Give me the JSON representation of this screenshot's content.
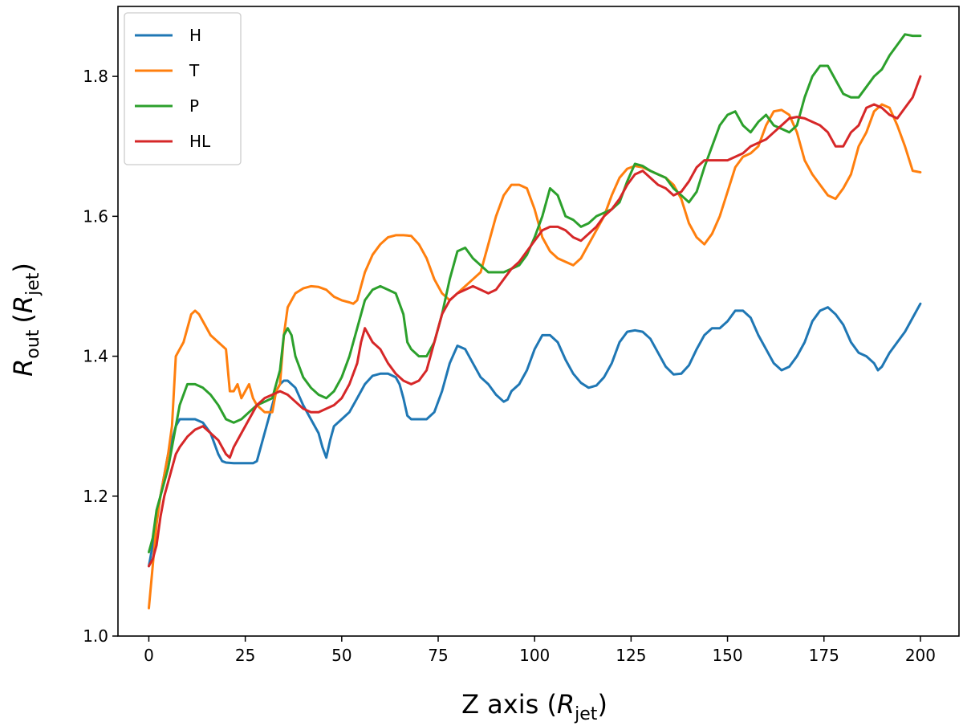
{
  "chart_data": {
    "type": "line",
    "xlabel": "Z axis (R_jet)",
    "xlabel_main": "Z axis (",
    "xlabel_var": "R",
    "xlabel_sub": "jet",
    "xlabel_close": ")",
    "ylabel_var": "R",
    "ylabel_sub1": "out",
    "ylabel_paren_open": "(",
    "ylabel_var2": "R",
    "ylabel_sub2": "jet",
    "ylabel_paren_close": ")",
    "xlim": [
      -8,
      210
    ],
    "ylim": [
      1.0,
      1.9
    ],
    "xticks": [
      0,
      25,
      50,
      75,
      100,
      125,
      150,
      175,
      200
    ],
    "yticks": [
      1.0,
      1.2,
      1.4,
      1.6,
      1.8
    ],
    "grid": false,
    "legend_position": "top-left",
    "series": [
      {
        "name": "H",
        "color": "#1f77b4",
        "x": [
          0,
          1,
          2,
          3,
          4,
          5,
          6,
          7,
          8,
          10,
          12,
          14,
          16,
          17,
          18,
          19,
          20,
          22,
          25,
          27,
          28,
          30,
          32,
          33,
          34,
          35,
          36,
          38,
          40,
          42,
          44,
          45,
          46,
          47,
          48,
          50,
          52,
          54,
          56,
          58,
          60,
          62,
          64,
          65,
          66,
          67,
          68,
          70,
          72,
          74,
          76,
          78,
          80,
          82,
          84,
          86,
          88,
          90,
          92,
          93,
          94,
          96,
          98,
          100,
          102,
          104,
          106,
          108,
          110,
          112,
          114,
          116,
          118,
          120,
          122,
          124,
          126,
          128,
          130,
          132,
          134,
          136,
          138,
          140,
          142,
          144,
          146,
          148,
          150,
          152,
          154,
          156,
          158,
          160,
          162,
          164,
          166,
          168,
          170,
          172,
          174,
          176,
          178,
          180,
          182,
          184,
          186,
          188,
          189,
          190,
          192,
          194,
          196,
          198,
          200
        ],
        "y": [
          1.1,
          1.13,
          1.17,
          1.2,
          1.23,
          1.26,
          1.28,
          1.3,
          1.31,
          1.31,
          1.31,
          1.305,
          1.29,
          1.275,
          1.26,
          1.25,
          1.248,
          1.247,
          1.247,
          1.247,
          1.25,
          1.29,
          1.33,
          1.35,
          1.36,
          1.365,
          1.365,
          1.355,
          1.33,
          1.31,
          1.29,
          1.27,
          1.255,
          1.28,
          1.3,
          1.31,
          1.32,
          1.34,
          1.36,
          1.372,
          1.375,
          1.375,
          1.37,
          1.36,
          1.34,
          1.315,
          1.31,
          1.31,
          1.31,
          1.32,
          1.35,
          1.39,
          1.415,
          1.41,
          1.39,
          1.37,
          1.36,
          1.345,
          1.335,
          1.338,
          1.35,
          1.36,
          1.38,
          1.41,
          1.43,
          1.43,
          1.42,
          1.395,
          1.375,
          1.362,
          1.355,
          1.358,
          1.37,
          1.39,
          1.42,
          1.435,
          1.437,
          1.435,
          1.425,
          1.405,
          1.385,
          1.374,
          1.375,
          1.387,
          1.41,
          1.43,
          1.44,
          1.44,
          1.45,
          1.465,
          1.465,
          1.455,
          1.43,
          1.41,
          1.39,
          1.38,
          1.385,
          1.4,
          1.42,
          1.45,
          1.465,
          1.47,
          1.46,
          1.445,
          1.42,
          1.405,
          1.4,
          1.39,
          1.38,
          1.385,
          1.405,
          1.42,
          1.435,
          1.455,
          1.475
        ]
      },
      {
        "name": "T",
        "color": "#ff7f0e",
        "x": [
          0,
          1,
          2,
          3,
          4,
          5,
          6,
          7,
          8,
          9,
          10,
          11,
          12,
          13,
          14,
          16,
          18,
          20,
          21,
          22,
          23,
          24,
          25,
          26,
          27,
          28,
          30,
          32,
          33,
          34,
          35,
          36,
          37,
          38,
          40,
          42,
          44,
          46,
          48,
          50,
          52,
          53,
          54,
          55,
          56,
          58,
          60,
          62,
          64,
          66,
          68,
          70,
          72,
          74,
          76,
          78,
          80,
          82,
          84,
          86,
          88,
          90,
          92,
          94,
          96,
          98,
          100,
          102,
          104,
          106,
          108,
          110,
          112,
          114,
          116,
          118,
          120,
          122,
          124,
          126,
          128,
          130,
          132,
          134,
          136,
          138,
          140,
          142,
          144,
          146,
          148,
          150,
          152,
          154,
          156,
          158,
          160,
          162,
          164,
          166,
          168,
          170,
          172,
          174,
          176,
          178,
          180,
          182,
          184,
          186,
          188,
          190,
          192,
          194,
          196,
          198,
          200
        ],
        "y": [
          1.04,
          1.1,
          1.16,
          1.2,
          1.23,
          1.26,
          1.3,
          1.4,
          1.41,
          1.42,
          1.44,
          1.46,
          1.465,
          1.46,
          1.45,
          1.43,
          1.42,
          1.41,
          1.35,
          1.35,
          1.36,
          1.34,
          1.35,
          1.36,
          1.34,
          1.33,
          1.32,
          1.32,
          1.35,
          1.36,
          1.43,
          1.47,
          1.48,
          1.49,
          1.497,
          1.5,
          1.499,
          1.495,
          1.485,
          1.48,
          1.477,
          1.475,
          1.48,
          1.5,
          1.52,
          1.545,
          1.56,
          1.57,
          1.573,
          1.573,
          1.572,
          1.56,
          1.54,
          1.51,
          1.49,
          1.48,
          1.49,
          1.5,
          1.51,
          1.52,
          1.56,
          1.6,
          1.63,
          1.645,
          1.645,
          1.64,
          1.61,
          1.57,
          1.55,
          1.54,
          1.535,
          1.53,
          1.54,
          1.56,
          1.58,
          1.6,
          1.63,
          1.655,
          1.668,
          1.672,
          1.67,
          1.665,
          1.66,
          1.655,
          1.645,
          1.625,
          1.59,
          1.57,
          1.56,
          1.575,
          1.6,
          1.635,
          1.67,
          1.685,
          1.69,
          1.7,
          1.73,
          1.75,
          1.752,
          1.745,
          1.72,
          1.68,
          1.66,
          1.645,
          1.63,
          1.625,
          1.64,
          1.66,
          1.7,
          1.72,
          1.75,
          1.76,
          1.755,
          1.73,
          1.7,
          1.665,
          1.663
        ]
      },
      {
        "name": "P",
        "color": "#2ca02c",
        "x": [
          0,
          1,
          2,
          3,
          4,
          5,
          6,
          7,
          8,
          10,
          12,
          14,
          16,
          18,
          20,
          22,
          24,
          26,
          28,
          30,
          32,
          34,
          35,
          36,
          37,
          38,
          40,
          42,
          44,
          46,
          48,
          50,
          52,
          54,
          56,
          58,
          60,
          62,
          64,
          66,
          67,
          68,
          70,
          72,
          74,
          76,
          78,
          80,
          82,
          84,
          86,
          88,
          90,
          92,
          94,
          96,
          98,
          100,
          102,
          104,
          106,
          108,
          110,
          112,
          114,
          116,
          118,
          120,
          122,
          124,
          126,
          128,
          130,
          132,
          134,
          136,
          138,
          140,
          142,
          144,
          146,
          148,
          150,
          152,
          154,
          156,
          158,
          160,
          162,
          164,
          166,
          168,
          170,
          172,
          174,
          176,
          178,
          180,
          182,
          184,
          186,
          188,
          190,
          192,
          194,
          196,
          198,
          200
        ],
        "y": [
          1.12,
          1.14,
          1.18,
          1.2,
          1.22,
          1.24,
          1.27,
          1.3,
          1.33,
          1.36,
          1.36,
          1.355,
          1.345,
          1.33,
          1.31,
          1.305,
          1.31,
          1.32,
          1.33,
          1.335,
          1.34,
          1.38,
          1.43,
          1.44,
          1.43,
          1.4,
          1.37,
          1.355,
          1.345,
          1.34,
          1.35,
          1.37,
          1.4,
          1.44,
          1.48,
          1.495,
          1.5,
          1.495,
          1.49,
          1.46,
          1.42,
          1.41,
          1.4,
          1.4,
          1.42,
          1.46,
          1.51,
          1.55,
          1.555,
          1.54,
          1.53,
          1.52,
          1.52,
          1.52,
          1.525,
          1.53,
          1.545,
          1.57,
          1.6,
          1.64,
          1.63,
          1.6,
          1.595,
          1.585,
          1.59,
          1.6,
          1.605,
          1.61,
          1.62,
          1.65,
          1.675,
          1.672,
          1.665,
          1.66,
          1.655,
          1.64,
          1.63,
          1.62,
          1.635,
          1.67,
          1.7,
          1.73,
          1.745,
          1.75,
          1.73,
          1.72,
          1.735,
          1.745,
          1.73,
          1.725,
          1.72,
          1.73,
          1.77,
          1.8,
          1.815,
          1.815,
          1.795,
          1.775,
          1.77,
          1.77,
          1.785,
          1.8,
          1.81,
          1.83,
          1.845,
          1.86,
          1.858,
          1.858
        ]
      },
      {
        "name": "HL",
        "color": "#d62728",
        "x": [
          0,
          1,
          2,
          3,
          4,
          5,
          6,
          7,
          8,
          10,
          12,
          14,
          16,
          18,
          20,
          21,
          22,
          24,
          26,
          28,
          30,
          32,
          34,
          36,
          38,
          40,
          42,
          44,
          46,
          48,
          50,
          52,
          54,
          55,
          56,
          58,
          60,
          62,
          64,
          66,
          68,
          70,
          72,
          74,
          76,
          78,
          80,
          82,
          84,
          86,
          88,
          90,
          92,
          94,
          96,
          98,
          100,
          102,
          104,
          106,
          108,
          110,
          112,
          114,
          116,
          118,
          120,
          122,
          124,
          126,
          128,
          130,
          132,
          134,
          136,
          138,
          140,
          142,
          144,
          146,
          148,
          150,
          152,
          154,
          156,
          158,
          160,
          162,
          164,
          166,
          168,
          170,
          172,
          174,
          176,
          178,
          180,
          182,
          184,
          186,
          188,
          190,
          192,
          194,
          196,
          198,
          200
        ],
        "y": [
          1.1,
          1.11,
          1.13,
          1.17,
          1.2,
          1.22,
          1.24,
          1.26,
          1.27,
          1.285,
          1.295,
          1.3,
          1.29,
          1.28,
          1.26,
          1.255,
          1.27,
          1.29,
          1.31,
          1.33,
          1.34,
          1.345,
          1.35,
          1.345,
          1.335,
          1.325,
          1.32,
          1.32,
          1.325,
          1.33,
          1.34,
          1.36,
          1.39,
          1.42,
          1.44,
          1.42,
          1.41,
          1.39,
          1.375,
          1.365,
          1.36,
          1.365,
          1.38,
          1.42,
          1.46,
          1.48,
          1.49,
          1.495,
          1.5,
          1.495,
          1.49,
          1.495,
          1.51,
          1.525,
          1.535,
          1.55,
          1.565,
          1.58,
          1.585,
          1.585,
          1.58,
          1.57,
          1.565,
          1.575,
          1.585,
          1.6,
          1.61,
          1.625,
          1.645,
          1.66,
          1.665,
          1.655,
          1.645,
          1.64,
          1.63,
          1.635,
          1.65,
          1.67,
          1.68,
          1.68,
          1.68,
          1.68,
          1.685,
          1.69,
          1.7,
          1.705,
          1.71,
          1.72,
          1.73,
          1.74,
          1.742,
          1.74,
          1.735,
          1.73,
          1.72,
          1.7,
          1.7,
          1.72,
          1.73,
          1.755,
          1.76,
          1.755,
          1.745,
          1.74,
          1.755,
          1.77,
          1.8
        ]
      }
    ]
  }
}
